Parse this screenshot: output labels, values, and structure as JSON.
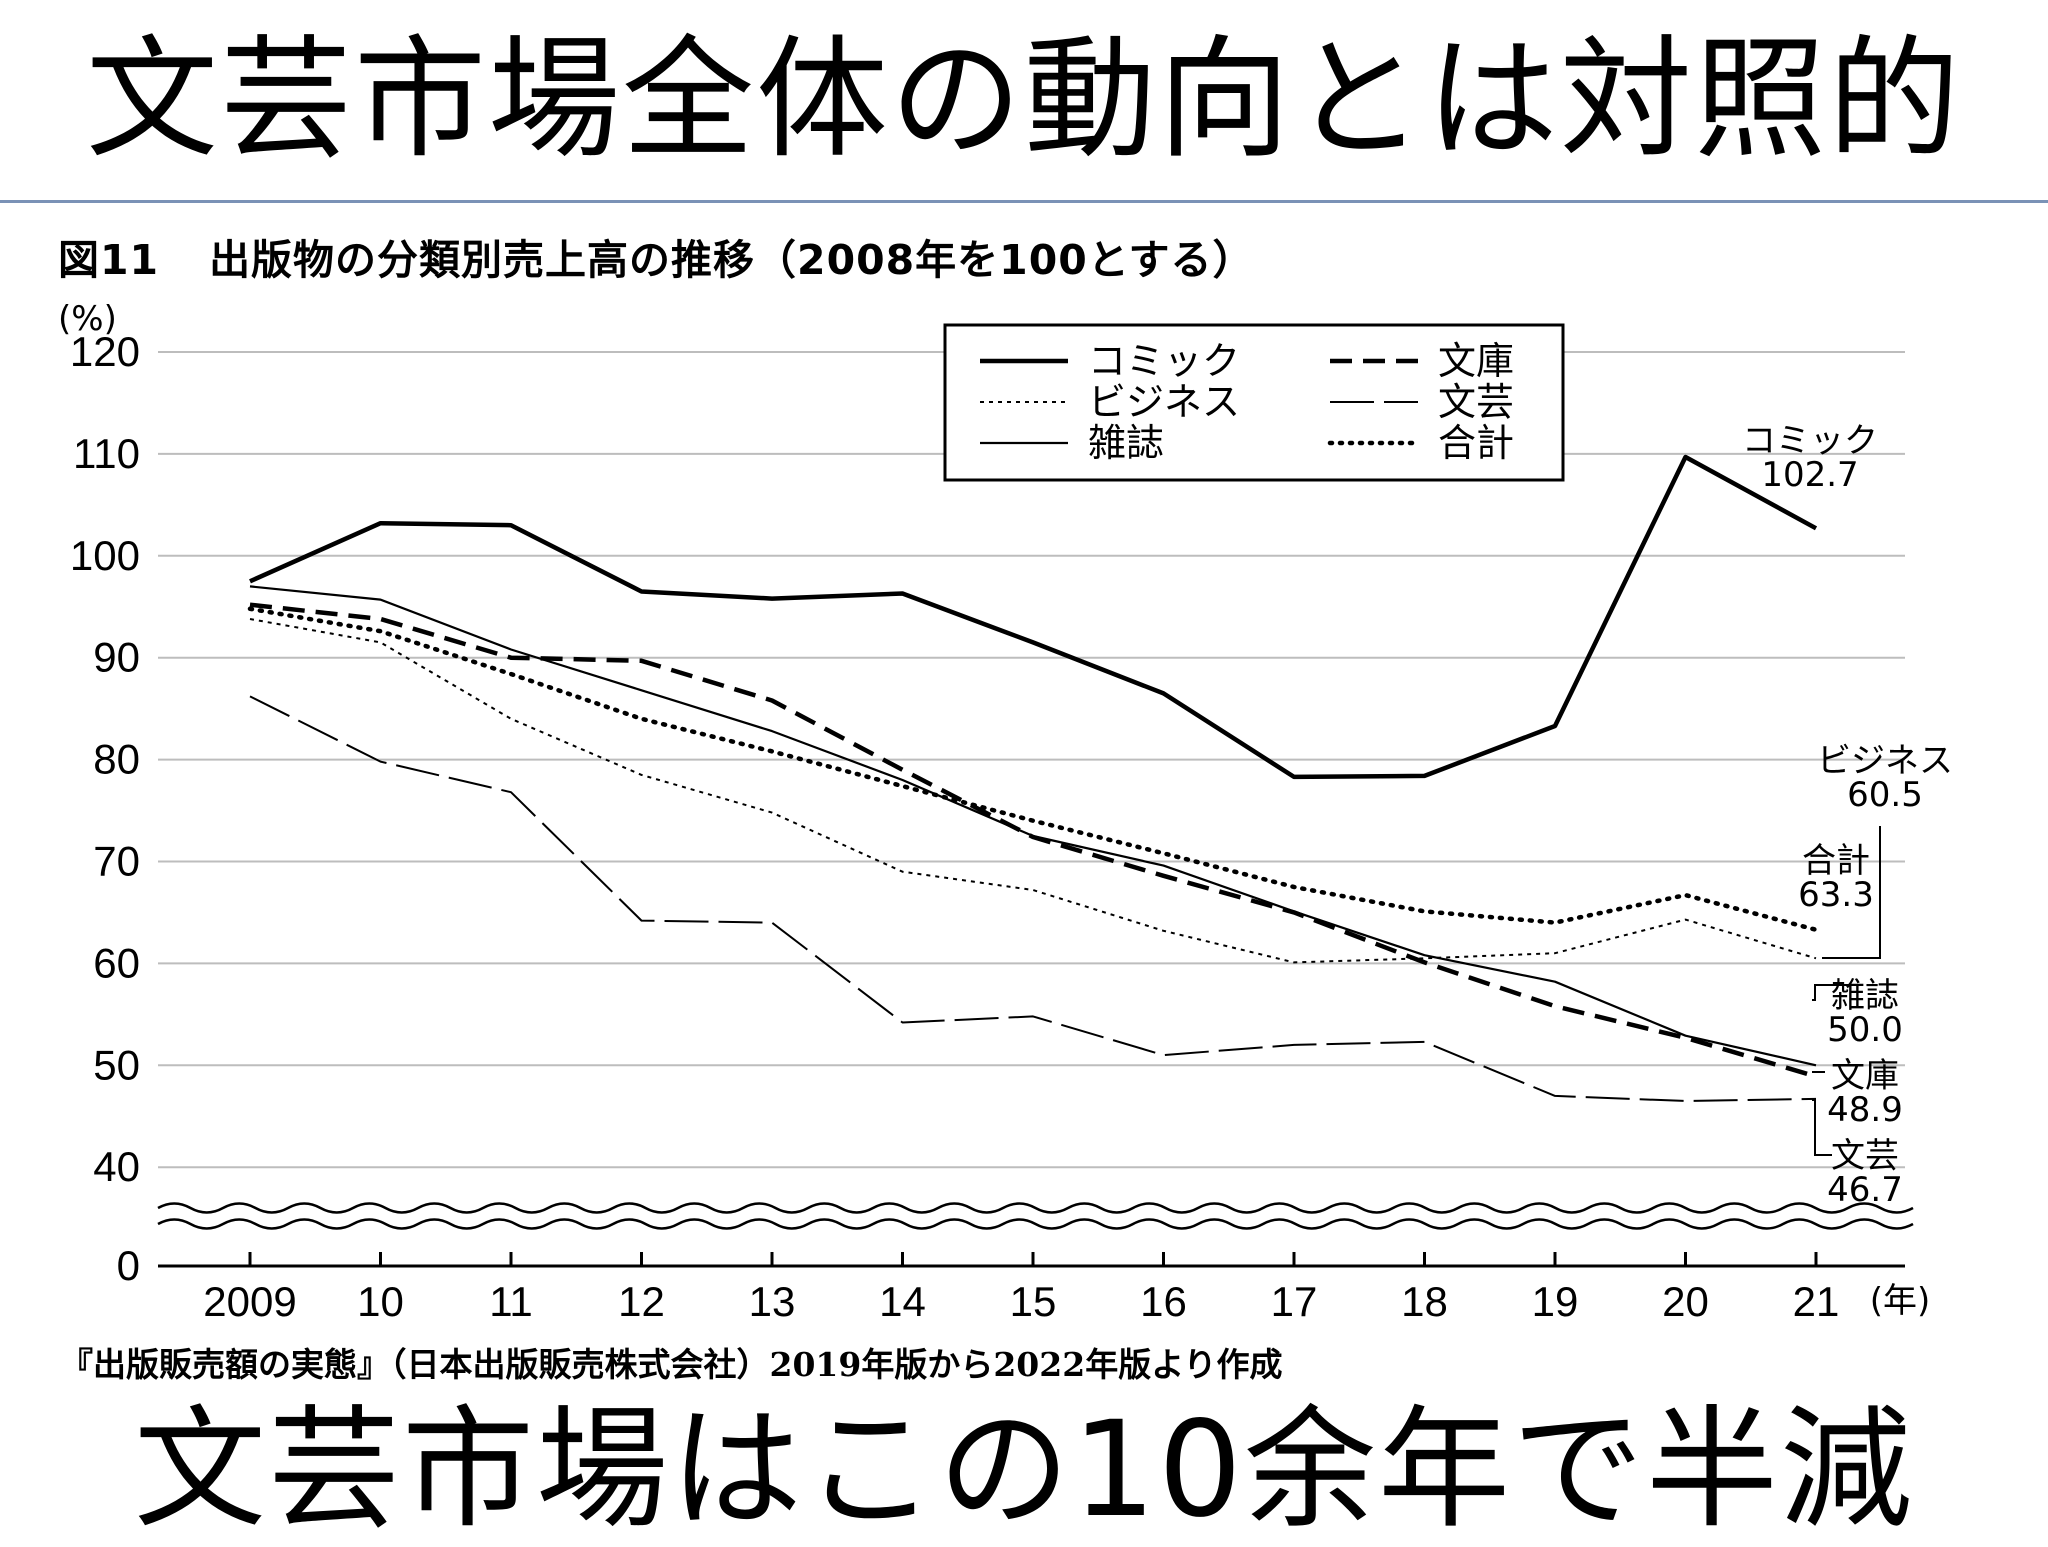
{
  "slide": {
    "title": "文芸市場全体の動向とは対照的",
    "footer": "文芸市場はこの10余年で半減"
  },
  "figure": {
    "number": "図11",
    "caption": "出版物の分類別売上高の推移（2008年を100とする）",
    "source": "『出版販売額の実態』（日本出版販売株式会社）2019年版から2022年版より作成"
  },
  "chart_data": {
    "type": "line",
    "y_unit": "(%)",
    "x_unit": "(年)",
    "categories": [
      "2009",
      "10",
      "11",
      "12",
      "13",
      "14",
      "15",
      "16",
      "17",
      "18",
      "19",
      "20",
      "21"
    ],
    "y_ticks": [
      "0",
      "40",
      "50",
      "60",
      "70",
      "80",
      "90",
      "100",
      "110",
      "120"
    ],
    "ylim": [
      0,
      120
    ],
    "y_axis_break": "between 0 and 40",
    "grid": true,
    "legend_position": "top-center",
    "series": [
      {
        "name": "コミック",
        "style": "thick-solid",
        "values": [
          97.5,
          103.2,
          103.0,
          96.5,
          95.8,
          96.3,
          91.5,
          86.5,
          78.3,
          78.4,
          83.3,
          109.7,
          102.7
        ],
        "end_label_name": "コミック",
        "end_label_value": "102.7"
      },
      {
        "name": "文庫",
        "style": "thick-dashed",
        "values": [
          95.2,
          93.8,
          90.0,
          89.7,
          85.8,
          79.0,
          72.4,
          68.6,
          65.0,
          60.1,
          55.8,
          52.7,
          48.9
        ],
        "end_label_name": "文庫",
        "end_label_value": "48.9"
      },
      {
        "name": "ビジネス",
        "style": "thin-dotted",
        "values": [
          93.8,
          91.5,
          84.0,
          78.5,
          74.8,
          69.0,
          67.2,
          63.2,
          60.1,
          60.5,
          61.0,
          64.3,
          60.5
        ],
        "end_label_name": "ビジネス",
        "end_label_value": "60.5"
      },
      {
        "name": "文芸",
        "style": "long-dash",
        "values": [
          86.2,
          79.8,
          76.8,
          64.2,
          64.0,
          54.2,
          54.8,
          51.0,
          52.0,
          52.3,
          47.0,
          46.5,
          46.7
        ],
        "end_label_name": "文芸",
        "end_label_value": "46.7"
      },
      {
        "name": "雑誌",
        "style": "thin-solid",
        "values": [
          97.0,
          95.7,
          90.8,
          86.8,
          82.8,
          78.0,
          72.5,
          69.6,
          65.1,
          60.8,
          58.2,
          52.9,
          50.0
        ],
        "end_label_name": "雑誌",
        "end_label_value": "50.0"
      },
      {
        "name": "合計",
        "style": "thick-dotted",
        "values": [
          94.8,
          92.6,
          88.4,
          84.0,
          80.8,
          77.4,
          74.0,
          70.8,
          67.5,
          65.1,
          64.0,
          66.7,
          63.3
        ],
        "end_label_name": "合計",
        "end_label_value": "63.3"
      }
    ],
    "legend": [
      {
        "label": "コミック",
        "style": "thick-solid"
      },
      {
        "label": "文庫",
        "style": "thick-dashed"
      },
      {
        "label": "ビジネス",
        "style": "thin-dotted"
      },
      {
        "label": "文芸",
        "style": "long-dash"
      },
      {
        "label": "雑誌",
        "style": "thin-solid"
      },
      {
        "label": "合計",
        "style": "thick-dotted"
      }
    ]
  }
}
